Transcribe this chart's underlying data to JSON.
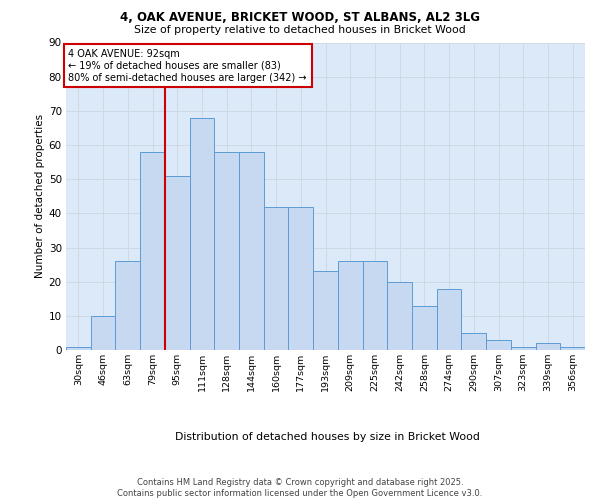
{
  "title_line1": "4, OAK AVENUE, BRICKET WOOD, ST ALBANS, AL2 3LG",
  "title_line2": "Size of property relative to detached houses in Bricket Wood",
  "xlabel": "Distribution of detached houses by size in Bricket Wood",
  "ylabel": "Number of detached properties",
  "categories": [
    "30sqm",
    "46sqm",
    "63sqm",
    "79sqm",
    "95sqm",
    "111sqm",
    "128sqm",
    "144sqm",
    "160sqm",
    "177sqm",
    "193sqm",
    "209sqm",
    "225sqm",
    "242sqm",
    "258sqm",
    "274sqm",
    "290sqm",
    "307sqm",
    "323sqm",
    "339sqm",
    "356sqm"
  ],
  "values": [
    1,
    10,
    26,
    58,
    51,
    68,
    58,
    58,
    42,
    42,
    23,
    26,
    26,
    20,
    13,
    18,
    5,
    3,
    1,
    2,
    1
  ],
  "bar_color": "#c6d9f0",
  "bar_edge_color": "#5b9bd5",
  "grid_color": "#d0d8e4",
  "background_color": "#dce9f8",
  "vline_x": 3.5,
  "vline_color": "#cc0000",
  "annotation_text": "4 OAK AVENUE: 92sqm\n← 19% of detached houses are smaller (83)\n80% of semi-detached houses are larger (342) →",
  "annotation_box_facecolor": "#ffffff",
  "annotation_box_edgecolor": "#cc0000",
  "ylim": [
    0,
    90
  ],
  "yticks": [
    0,
    10,
    20,
    30,
    40,
    50,
    60,
    70,
    80,
    90
  ],
  "footer_line1": "Contains HM Land Registry data © Crown copyright and database right 2025.",
  "footer_line2": "Contains public sector information licensed under the Open Government Licence v3.0."
}
